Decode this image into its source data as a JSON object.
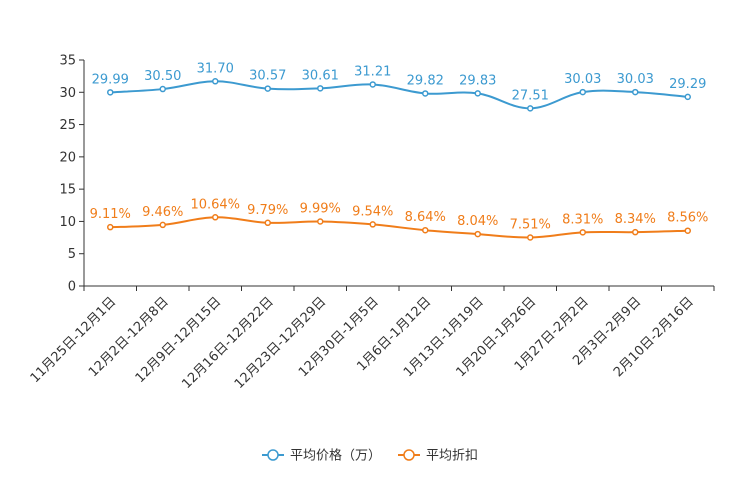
{
  "chart_data": {
    "type": "line",
    "title": "",
    "xlabel": "",
    "ylabel": "",
    "ylim": [
      0,
      35
    ],
    "yticks": [
      0,
      5,
      10,
      15,
      20,
      25,
      30,
      35
    ],
    "categories": [
      "11月25日-12月1日",
      "12月2日-12月8日",
      "12月9日-12月15日",
      "12月16日-12月22日",
      "12月23日-12月29日",
      "12月30日-1月5日",
      "1月6日-1月12日",
      "1月13日-1月19日",
      "1月20日-1月26日",
      "1月27日-2月2日",
      "2月3日-2月9日",
      "2月10日-2月16日"
    ],
    "series": [
      {
        "name": "平均价格（万）",
        "color": "#3c9ad0",
        "values": [
          29.99,
          30.5,
          31.7,
          30.57,
          30.61,
          31.21,
          29.82,
          29.83,
          27.51,
          30.03,
          30.03,
          29.29
        ],
        "labels": [
          "29.99",
          "30.50",
          "31.70",
          "30.57",
          "30.61",
          "31.21",
          "29.82",
          "29.83",
          "27.51",
          "30.03",
          "30.03",
          "29.29"
        ]
      },
      {
        "name": "平均折扣",
        "color": "#f07d1a",
        "values": [
          9.11,
          9.46,
          10.64,
          9.79,
          9.99,
          9.54,
          8.64,
          8.04,
          7.51,
          8.31,
          8.34,
          8.56
        ],
        "labels": [
          "9.11%",
          "9.46%",
          "10.64%",
          "9.79%",
          "9.99%",
          "9.54%",
          "8.64%",
          "8.04%",
          "7.51%",
          "8.31%",
          "8.34%",
          "8.56%"
        ]
      }
    ],
    "legend_position": "bottom-center"
  }
}
